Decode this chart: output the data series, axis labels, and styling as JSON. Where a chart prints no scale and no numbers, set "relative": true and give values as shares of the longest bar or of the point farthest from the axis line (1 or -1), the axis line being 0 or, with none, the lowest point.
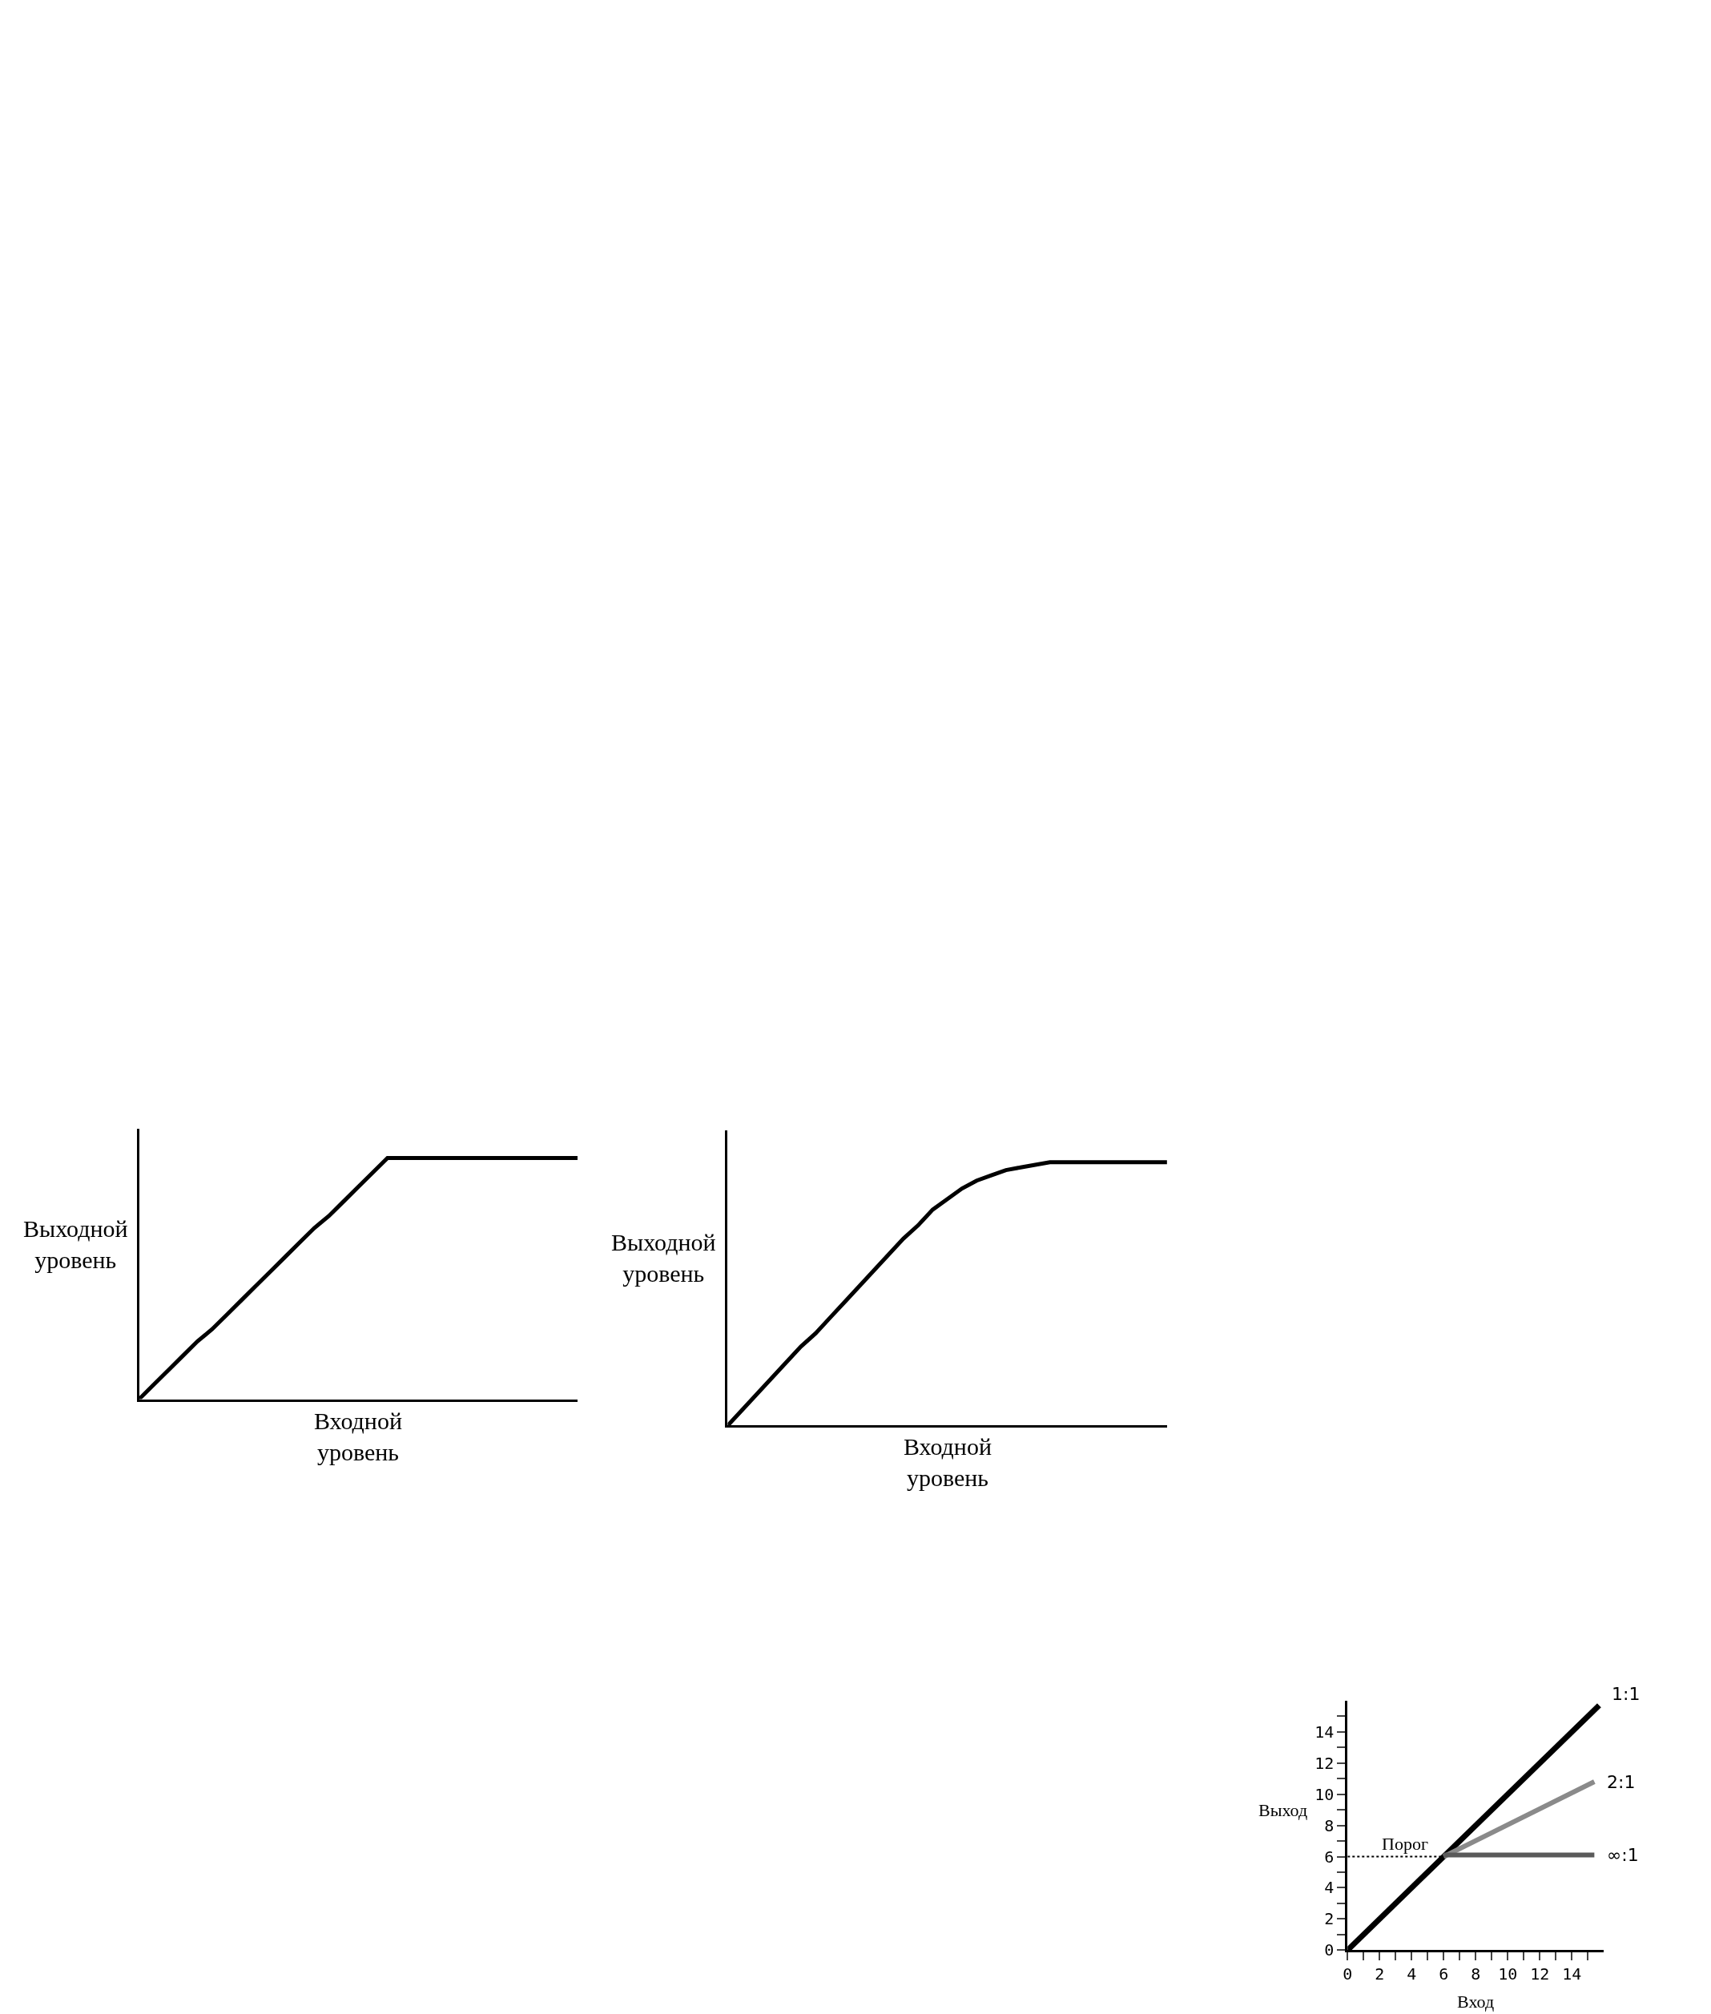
{
  "chart_data": [
    {
      "type": "line",
      "relative": true,
      "xlabel": "Входной\nуровень",
      "ylabel": "Выходной\nуровень",
      "legend": false,
      "marker": "none",
      "categories": [
        null,
        null,
        null,
        null,
        null,
        null,
        null,
        null,
        null,
        null,
        null,
        null,
        null,
        null,
        null,
        null,
        null,
        null,
        null,
        null,
        null,
        null,
        null,
        null,
        null,
        null,
        null,
        null,
        null,
        null,
        null
      ],
      "series": [
        {
          "color": "#000000",
          "values": [
            0,
            0.06,
            0.12,
            0.18,
            0.24,
            0.29,
            0.35,
            0.41,
            0.47,
            0.53,
            0.59,
            0.65,
            0.71,
            0.76,
            0.82,
            0.88,
            0.94,
            1,
            1,
            1,
            1,
            1,
            1,
            1,
            1,
            1,
            1,
            1,
            1,
            1,
            1
          ]
        }
      ]
    },
    {
      "type": "line",
      "relative": true,
      "xlabel": "Входной\nуровень",
      "ylabel": "Выходной\nуровень",
      "legend": false,
      "marker": "none",
      "categories": [
        null,
        null,
        null,
        null,
        null,
        null,
        null,
        null,
        null,
        null,
        null,
        null,
        null,
        null,
        null,
        null,
        null,
        null,
        null,
        null,
        null,
        null,
        null,
        null,
        null,
        null,
        null,
        null,
        null,
        null,
        null
      ],
      "series": [
        {
          "color": "#000000",
          "values": [
            0,
            0.06,
            0.12,
            0.18,
            0.24,
            0.3,
            0.35,
            0.41,
            0.47,
            0.53,
            0.59,
            0.65,
            0.71,
            0.76,
            0.82,
            0.86,
            0.9,
            0.93,
            0.95,
            0.97,
            0.98,
            0.99,
            1,
            1,
            1,
            1,
            1,
            1,
            1,
            1,
            1
          ]
        }
      ]
    },
    {
      "type": "line",
      "xlabel": "Вход",
      "ylabel": "Выход",
      "legend": false,
      "marker": "none",
      "xlim": [
        0,
        16
      ],
      "ylim": [
        0,
        16
      ],
      "xticks": [
        0,
        {
          "value": 1,
          "label": null
        },
        2,
        {
          "value": 3,
          "label": null
        },
        4,
        {
          "value": 5,
          "label": null
        },
        6,
        {
          "value": 7,
          "label": null
        },
        8,
        {
          "value": 9,
          "label": null
        },
        10,
        {
          "value": 11,
          "label": null
        },
        12,
        {
          "value": 13,
          "label": null
        },
        14,
        {
          "value": 15,
          "label": null
        }
      ],
      "yticks": [
        0,
        {
          "value": 1,
          "label": null
        },
        2,
        {
          "value": 3,
          "label": null
        },
        4,
        {
          "value": 5,
          "label": null
        },
        6,
        {
          "value": 7,
          "label": null
        },
        8,
        {
          "value": 9,
          "label": null
        },
        10,
        {
          "value": 11,
          "label": null
        },
        12,
        {
          "value": 13,
          "label": null
        },
        14,
        {
          "value": 15,
          "label": null
        }
      ],
      "series": [
        {
          "name": "1:1",
          "color": "#000000",
          "x": [
            0,
            15.7
          ],
          "values": [
            0,
            15.7
          ]
        },
        {
          "name": "2:1",
          "color": "#8a8a8a",
          "x": [
            6,
            15.4
          ],
          "values": [
            6,
            10.8
          ]
        },
        {
          "name": "∞:1",
          "color": "#5a5a5a",
          "x": [
            6,
            15.4
          ],
          "values": [
            6.1,
            6.1
          ]
        },
        {
          "name": "Порог",
          "color": "#000000",
          "line_style": "dotted",
          "x": [
            0,
            6
          ],
          "values": [
            6,
            6
          ]
        }
      ]
    }
  ]
}
